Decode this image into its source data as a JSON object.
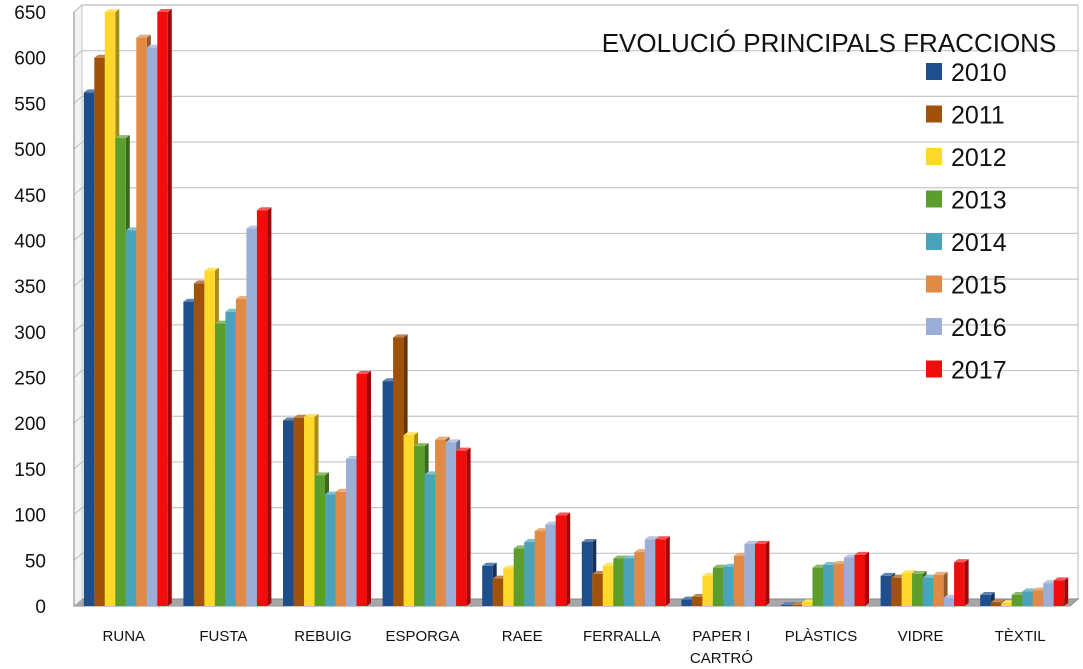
{
  "chart_data": {
    "type": "bar",
    "title": "EVOLUCIÓ PRINCIPALS FRACCIONS",
    "xlabel": "",
    "ylabel": "",
    "ylim": [
      0,
      650
    ],
    "yticks": [
      0,
      50,
      100,
      150,
      200,
      250,
      300,
      350,
      400,
      450,
      500,
      550,
      600,
      650
    ],
    "grid": true,
    "legend_position": "right",
    "categories": [
      [
        "RUNA"
      ],
      [
        "FUSTA"
      ],
      [
        "REBUIG"
      ],
      [
        "ESPORGA"
      ],
      [
        "RAEE"
      ],
      [
        "FERRALLA"
      ],
      [
        "PAPER I",
        "CARTRÓ"
      ],
      [
        "PLÀSTICS"
      ],
      [
        "VIDRE"
      ],
      [
        "TÈXTIL"
      ]
    ],
    "series": [
      {
        "name": "2010",
        "color": "#1F4E8C",
        "values": [
          562,
          333,
          203,
          246,
          44,
          70,
          7,
          1,
          33,
          12
        ]
      },
      {
        "name": "2011",
        "color": "#A0520A",
        "values": [
          600,
          353,
          206,
          294,
          30,
          35,
          10,
          1,
          31,
          4
        ]
      },
      {
        "name": "2012",
        "color": "#FFD82A",
        "values": [
          650,
          367,
          207,
          187,
          41,
          44,
          33,
          4,
          36,
          3
        ]
      },
      {
        "name": "2013",
        "color": "#5C9E2E",
        "values": [
          512,
          309,
          143,
          175,
          63,
          52,
          42,
          42,
          35,
          12
        ]
      },
      {
        "name": "2014",
        "color": "#4BA3BA",
        "values": [
          411,
          322,
          122,
          144,
          70,
          52,
          43,
          45,
          31,
          16
        ]
      },
      {
        "name": "2015",
        "color": "#E08A45",
        "values": [
          622,
          336,
          125,
          182,
          82,
          59,
          55,
          46,
          34,
          17
        ]
      },
      {
        "name": "2016",
        "color": "#9AAED8",
        "values": [
          611,
          413,
          161,
          179,
          89,
          73,
          68,
          53,
          9,
          25
        ]
      },
      {
        "name": "2017",
        "color": "#F20D0D",
        "values": [
          650,
          433,
          254,
          170,
          99,
          73,
          68,
          56,
          48,
          28
        ]
      }
    ]
  }
}
